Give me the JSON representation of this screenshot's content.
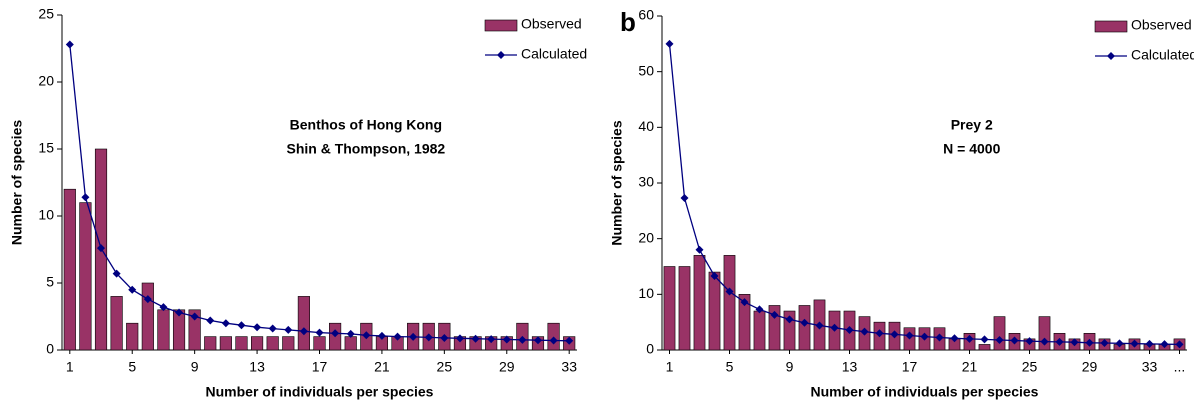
{
  "chart_data": [
    {
      "type": "bar-line",
      "ylabel": "Number of species",
      "xlabel": "Number of individuals per species",
      "annotation": [
        "Benthos of Hong Kong",
        "Shin & Thompson, 1982"
      ],
      "x": [
        1,
        2,
        3,
        4,
        5,
        6,
        7,
        8,
        9,
        10,
        11,
        12,
        13,
        14,
        15,
        16,
        17,
        18,
        19,
        20,
        21,
        22,
        23,
        24,
        25,
        26,
        27,
        28,
        29,
        30,
        31,
        32,
        33
      ],
      "series": [
        {
          "name": "Observed",
          "color": "#993366",
          "values": [
            12,
            11,
            15,
            4,
            2,
            5,
            3,
            3,
            3,
            1,
            1,
            1,
            1,
            1,
            1,
            4,
            1,
            2,
            1,
            2,
            1,
            1,
            2,
            2,
            2,
            1,
            1,
            1,
            1,
            2,
            1,
            2,
            1
          ]
        },
        {
          "name": "Calculated",
          "color": "#000080",
          "values": [
            22.8,
            11.4,
            7.6,
            5.7,
            4.5,
            3.8,
            3.2,
            2.8,
            2.5,
            2.2,
            2.0,
            1.85,
            1.7,
            1.6,
            1.5,
            1.4,
            1.3,
            1.25,
            1.2,
            1.1,
            1.05,
            1.0,
            0.98,
            0.94,
            0.9,
            0.87,
            0.84,
            0.81,
            0.78,
            0.76,
            0.73,
            0.71,
            0.69
          ]
        }
      ],
      "xlim": [
        0.5,
        33.5
      ],
      "xticks": [
        1,
        5,
        9,
        13,
        17,
        21,
        25,
        29,
        33
      ],
      "ylim": [
        0,
        25
      ],
      "yticks": [
        0,
        5,
        10,
        15,
        20,
        25
      ],
      "legend": "top-right"
    },
    {
      "type": "bar-line",
      "panel_label": "b",
      "ylabel": "Number of species",
      "xlabel": "Number of individuals per species",
      "annotation": [
        "Prey 2",
        "N = 4000"
      ],
      "x": [
        1,
        2,
        3,
        4,
        5,
        6,
        7,
        8,
        9,
        10,
        11,
        12,
        13,
        14,
        15,
        16,
        17,
        18,
        19,
        20,
        21,
        22,
        23,
        24,
        25,
        26,
        27,
        28,
        29,
        30,
        31,
        32,
        33,
        34,
        35
      ],
      "series": [
        {
          "name": "Observed",
          "color": "#993366",
          "values": [
            15,
            15,
            17,
            14,
            17,
            10,
            7,
            8,
            7,
            8,
            9,
            7,
            7,
            6,
            5,
            5,
            4,
            4,
            4,
            2,
            3,
            1,
            6,
            3,
            2,
            6,
            3,
            2,
            3,
            2,
            1,
            2,
            1,
            1,
            2
          ]
        },
        {
          "name": "Calculated",
          "color": "#000080",
          "values": [
            55,
            27.3,
            18,
            13.3,
            10.5,
            8.6,
            7.3,
            6.3,
            5.5,
            4.9,
            4.4,
            4.0,
            3.6,
            3.3,
            3.0,
            2.8,
            2.6,
            2.4,
            2.25,
            2.1,
            2.0,
            1.9,
            1.8,
            1.7,
            1.6,
            1.5,
            1.45,
            1.4,
            1.3,
            1.25,
            1.2,
            1.15,
            1.1,
            1.05,
            1.0
          ]
        }
      ],
      "xlim": [
        0.5,
        35.5
      ],
      "xticks": [
        1,
        5,
        9,
        13,
        17,
        21,
        25,
        29,
        33,
        {
          "value": 35,
          "label": "..."
        }
      ],
      "ylim": [
        0,
        60
      ],
      "yticks": [
        0,
        10,
        20,
        30,
        40,
        50,
        60
      ],
      "legend": "top-right"
    }
  ]
}
